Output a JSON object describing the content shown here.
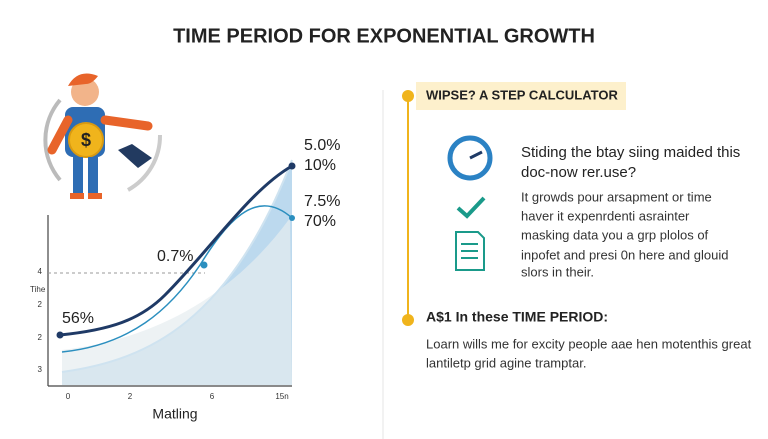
{
  "header": {
    "title": "TIME PERIOD FOR EXPONENTIAL GROWTH"
  },
  "chart": {
    "y_axis_title": "Tihe",
    "y_labels": [
      "4",
      "2",
      "2",
      "3"
    ],
    "x_labels": [
      "0",
      "2",
      "6",
      "15n"
    ],
    "x_axis_title": "Matling",
    "annotations": [
      "5.0%",
      "10%",
      "7.5%",
      "70%",
      "0.7%",
      "56%"
    ]
  },
  "panel": {
    "banner": "WIPSE? A STEP CALCULATOR",
    "question": [
      "Stiding the btay siing maided this",
      "doc-now rer.use?"
    ],
    "paragraph": [
      "It growds pour arsapment or time",
      "haver it expenrdenti asrainter",
      "masking data you a grp plolos of",
      "inpofet and presi 0n here and glouid",
      "slors in their."
    ],
    "section_title": "A$1 In these TIME PERIOD:",
    "section_text": [
      "Loarn wills me for excity people aae hen motenthis great",
      "lantiletp grid agine tramptar."
    ]
  }
}
